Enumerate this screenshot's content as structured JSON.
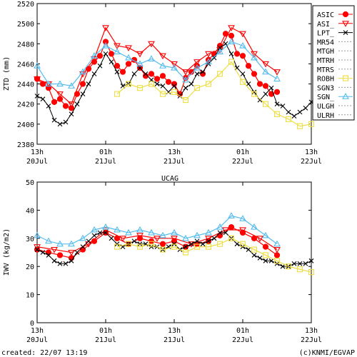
{
  "chart_data": [
    {
      "type": "line",
      "ylabel": "ZTD (mm)",
      "ylim": [
        2380,
        2520
      ],
      "yticks": [
        2380,
        2400,
        2420,
        2440,
        2460,
        2480,
        2500,
        2520
      ],
      "x_ticks": [
        {
          "hour": 0,
          "line1": "13h",
          "line2": "20Jul"
        },
        {
          "hour": 12,
          "line1": "01h",
          "line2": "21Jul"
        },
        {
          "hour": 24,
          "line1": "13h",
          "line2": "21Jul"
        },
        {
          "hour": 36,
          "line1": "01h",
          "line2": "22Jul"
        },
        {
          "hour": 48,
          "line1": "13h",
          "line2": "22Jul"
        }
      ],
      "xlim": [
        0,
        48
      ],
      "legend_position": "right",
      "series": [
        {
          "name": "ASIC",
          "color": "#ff0000",
          "marker": "filled-circle",
          "x": [
            0,
            1,
            2,
            3,
            4,
            5,
            6,
            7,
            8,
            9,
            10,
            11,
            12,
            13,
            14,
            15,
            16,
            17,
            18,
            19,
            20,
            21,
            22,
            23,
            24,
            25,
            26,
            27,
            28,
            29,
            30,
            31,
            32,
            33,
            34,
            35,
            36,
            37,
            38,
            39,
            40,
            41,
            42
          ],
          "y": [
            2445,
            2440,
            2436,
            2422,
            2425,
            2418,
            2416,
            2430,
            2440,
            2455,
            2462,
            2468,
            2482,
            2470,
            2458,
            2452,
            2460,
            2464,
            2456,
            2448,
            2450,
            2445,
            2448,
            2442,
            2440,
            2430,
            2446,
            2452,
            2458,
            2450,
            2464,
            2470,
            2478,
            2490,
            2488,
            2470,
            2468,
            2458,
            2450,
            2440,
            2438,
            2430,
            2432
          ]
        },
        {
          "name": "ASI_",
          "color": "#ff0000",
          "marker": "open-triangle-down",
          "x": [
            0,
            2,
            4,
            6,
            8,
            10,
            12,
            14,
            16,
            18,
            20,
            22,
            24,
            26,
            28,
            30,
            32,
            34,
            36,
            38,
            40,
            42
          ],
          "y": [
            2445,
            2440,
            2430,
            2420,
            2450,
            2465,
            2496,
            2478,
            2476,
            2470,
            2480,
            2468,
            2460,
            2452,
            2462,
            2470,
            2474,
            2496,
            2490,
            2470,
            2460,
            2452
          ]
        },
        {
          "name": "LPT_",
          "color": "#000000",
          "marker": "x",
          "x": [
            0,
            1,
            2,
            3,
            4,
            5,
            6,
            7,
            8,
            9,
            10,
            11,
            12,
            13,
            14,
            15,
            16,
            17,
            18,
            19,
            20,
            21,
            22,
            23,
            24,
            25,
            26,
            27,
            28,
            29,
            30,
            31,
            32,
            33,
            34,
            35,
            36,
            37,
            38,
            39,
            40,
            41,
            42,
            43,
            44,
            45,
            46,
            47,
            48
          ],
          "y": [
            2428,
            2425,
            2418,
            2404,
            2400,
            2402,
            2410,
            2420,
            2430,
            2440,
            2450,
            2458,
            2470,
            2462,
            2452,
            2438,
            2440,
            2450,
            2456,
            2450,
            2444,
            2440,
            2438,
            2432,
            2438,
            2428,
            2436,
            2440,
            2450,
            2452,
            2460,
            2466,
            2476,
            2480,
            2470,
            2456,
            2450,
            2440,
            2432,
            2424,
            2430,
            2436,
            2420,
            2418,
            2412,
            2408,
            2412,
            2416,
            2422
          ]
        },
        {
          "name": "MR54",
          "color": "#999999",
          "marker": "dotted",
          "x": [],
          "y": []
        },
        {
          "name": "MTGH",
          "color": "#999999",
          "marker": "dotted",
          "x": [],
          "y": []
        },
        {
          "name": "MTRH",
          "color": "#999999",
          "marker": "dotted",
          "x": [],
          "y": []
        },
        {
          "name": "MTRS",
          "color": "#999999",
          "marker": "dotted",
          "x": [],
          "y": []
        },
        {
          "name": "ROBH",
          "color": "#eedd44",
          "marker": "open-square",
          "x": [
            14,
            16,
            18,
            20,
            22,
            24,
            26,
            28,
            30,
            32,
            34,
            36,
            38,
            40,
            42,
            44,
            46,
            48
          ],
          "y": [
            2430,
            2440,
            2436,
            2440,
            2430,
            2432,
            2424,
            2436,
            2440,
            2450,
            2462,
            2442,
            2430,
            2420,
            2410,
            2405,
            2398,
            2400
          ]
        },
        {
          "name": "SGN3",
          "color": "#999999",
          "marker": "dotted",
          "x": [],
          "y": []
        },
        {
          "name": "SGN_",
          "color": "#55bbee",
          "marker": "open-triangle-up",
          "x": [
            0,
            2,
            4,
            6,
            8,
            10,
            12,
            14,
            16,
            18,
            20,
            22,
            24,
            26,
            28,
            30,
            32,
            34,
            36,
            38,
            40,
            42
          ],
          "y": [
            2458,
            2440,
            2440,
            2438,
            2452,
            2468,
            2478,
            2472,
            2466,
            2460,
            2465,
            2458,
            2456,
            2444,
            2456,
            2462,
            2472,
            2482,
            2478,
            2466,
            2452,
            2445
          ]
        },
        {
          "name": "ULGH",
          "color": "#999999",
          "marker": "dotted",
          "x": [],
          "y": []
        },
        {
          "name": "ULRH",
          "color": "#999999",
          "marker": "dotted",
          "x": [],
          "y": []
        }
      ]
    },
    {
      "type": "line",
      "title": "UCAG",
      "ylabel": "IWV (kg/m2)",
      "ylim": [
        0,
        50
      ],
      "yticks": [
        0,
        10,
        20,
        30,
        40,
        50
      ],
      "x_ticks": [
        {
          "hour": 0,
          "line1": "13h",
          "line2": "20Jul"
        },
        {
          "hour": 12,
          "line1": "01h",
          "line2": "21Jul"
        },
        {
          "hour": 24,
          "line1": "13h",
          "line2": "21Jul"
        },
        {
          "hour": 36,
          "line1": "01h",
          "line2": "22Jul"
        },
        {
          "hour": 48,
          "line1": "13h",
          "line2": "22Jul"
        }
      ],
      "xlim": [
        0,
        48
      ],
      "series": [
        {
          "name": "ASIC",
          "color": "#ff0000",
          "marker": "filled-circle",
          "x": [
            0,
            2,
            4,
            6,
            8,
            10,
            12,
            14,
            16,
            18,
            20,
            22,
            24,
            26,
            28,
            30,
            32,
            34,
            36,
            38,
            40,
            42
          ],
          "y": [
            26,
            25,
            24,
            23,
            26,
            29,
            32,
            30,
            28,
            30,
            29,
            28,
            29,
            27,
            28,
            29,
            31,
            34,
            32,
            30,
            27,
            24
          ]
        },
        {
          "name": "ASI_",
          "color": "#ff0000",
          "marker": "open-triangle-down",
          "x": [
            0,
            3,
            6,
            9,
            12,
            15,
            18,
            21,
            24,
            27,
            30,
            33,
            36,
            39,
            42
          ],
          "y": [
            27,
            26,
            25,
            28,
            33,
            30,
            31,
            30,
            30,
            28,
            30,
            33,
            33,
            30,
            26
          ]
        },
        {
          "name": "LPT_",
          "color": "#000000",
          "marker": "x",
          "x": [
            0,
            1,
            2,
            3,
            4,
            5,
            6,
            7,
            8,
            9,
            10,
            11,
            12,
            13,
            14,
            15,
            16,
            17,
            18,
            19,
            20,
            21,
            22,
            23,
            24,
            25,
            26,
            27,
            28,
            29,
            30,
            31,
            32,
            33,
            34,
            35,
            36,
            37,
            38,
            39,
            40,
            41,
            42,
            43,
            44,
            45,
            46,
            47,
            48
          ],
          "y": [
            26,
            25,
            24,
            22,
            21,
            21,
            22,
            25,
            27,
            29,
            31,
            32,
            32,
            30,
            28,
            27,
            28,
            29,
            28,
            28,
            27,
            27,
            26,
            27,
            28,
            26,
            27,
            28,
            29,
            28,
            29,
            30,
            32,
            32,
            30,
            28,
            27,
            26,
            24,
            23,
            22,
            22,
            21,
            20,
            20,
            21,
            21,
            21,
            22
          ]
        },
        {
          "name": "ROBH",
          "color": "#eedd44",
          "marker": "open-square",
          "x": [
            14,
            16,
            18,
            20,
            22,
            24,
            26,
            28,
            30,
            32,
            34,
            36,
            38,
            40,
            42,
            44,
            46,
            48
          ],
          "y": [
            27,
            28,
            27,
            28,
            26,
            27,
            25,
            27,
            27,
            28,
            30,
            28,
            26,
            24,
            22,
            20,
            19,
            18
          ]
        },
        {
          "name": "SGN_",
          "color": "#55bbee",
          "marker": "open-triangle-up",
          "x": [
            0,
            2,
            4,
            6,
            8,
            10,
            12,
            14,
            16,
            18,
            20,
            22,
            24,
            26,
            28,
            30,
            32,
            34,
            36,
            38,
            40,
            42
          ],
          "y": [
            31,
            29,
            28,
            28,
            30,
            33,
            34,
            33,
            32,
            33,
            32,
            31,
            32,
            30,
            31,
            32,
            34,
            38,
            37,
            34,
            31,
            28
          ]
        }
      ]
    }
  ],
  "footer": {
    "created": "created: 22/07 13:19",
    "credit": "(c)KNMI/EGVAP"
  }
}
